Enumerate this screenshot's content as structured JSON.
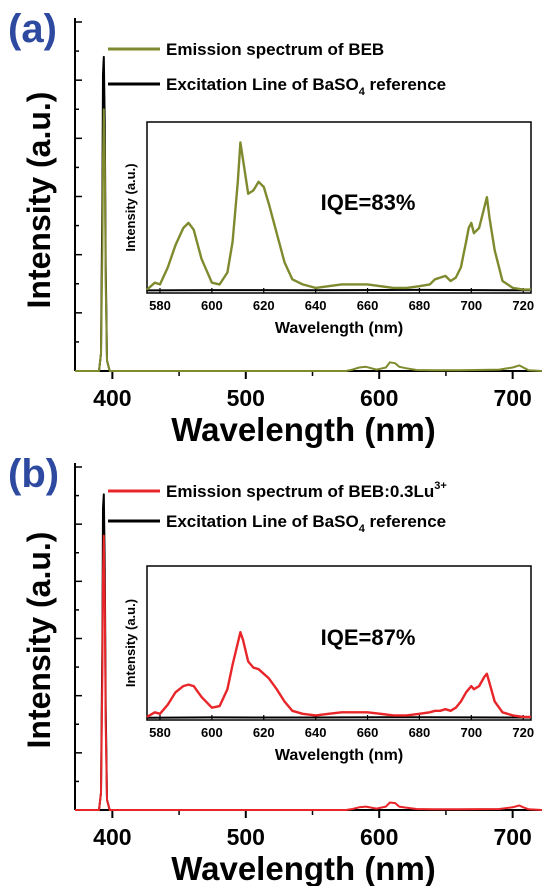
{
  "chart_data": [
    {
      "type": "line",
      "panel_label": "(a)",
      "xlabel": "Wavelength (nm)",
      "ylabel": "Intensity (a.u.)",
      "xlim": [
        372,
        722
      ],
      "ylim": [
        0,
        1.0
      ],
      "xticks": [
        400,
        500,
        600,
        700
      ],
      "xtick_labels": [
        "400",
        "500",
        "600",
        "700"
      ],
      "legend_position": "top-right",
      "legend_top_right": true,
      "colors": {
        "emission": "#7f8a2e",
        "reference": "#000000",
        "panel_label": "#2e4aa0"
      },
      "series": [
        {
          "name": "Emission spectrum of BEB",
          "key": "emission",
          "x": [
            372,
            390,
            391.5,
            392.5,
            393,
            393.6,
            394.3,
            395,
            396,
            398,
            400,
            500,
            575,
            580,
            585,
            590,
            598,
            605,
            608,
            612,
            615,
            620,
            628,
            640,
            660,
            690,
            700,
            705,
            708,
            712,
            722
          ],
          "y": [
            0,
            0,
            0.05,
            0.35,
            0.6,
            0.75,
            0.6,
            0.25,
            0.03,
            0,
            0,
            0,
            0,
            0.004,
            0.01,
            0.012,
            0.004,
            0.01,
            0.025,
            0.022,
            0.012,
            0.008,
            0.003,
            0.002,
            0.002,
            0.004,
            0.01,
            0.016,
            0.01,
            0.002,
            0
          ]
        },
        {
          "name": "Excitation Line of BaSO",
          "name_subscript": "4",
          "name_suffix": " reference",
          "key": "reference",
          "x": [
            372,
            390,
            391.5,
            392.5,
            393,
            393.6,
            394.3,
            395,
            396,
            398,
            722
          ],
          "y": [
            0,
            0,
            0.05,
            0.5,
            0.85,
            0.9,
            0.7,
            0.3,
            0.03,
            0,
            0
          ]
        }
      ],
      "inset": {
        "xlabel": "Wavelength (nm)",
        "ylabel": "Intensity (a.u.)",
        "xlim": [
          575,
          723
        ],
        "ylim": [
          0,
          1.0
        ],
        "xticks": [
          580,
          600,
          620,
          640,
          660,
          680,
          700,
          720
        ],
        "xtick_labels": [
          "580",
          "600",
          "620",
          "640",
          "660",
          "680",
          "700",
          "720"
        ],
        "annotation": "IQE=83%",
        "series": [
          {
            "key": "emission",
            "x": [
              575,
              578,
              580,
              583,
              586,
              589,
              591,
              593,
              596,
              600,
              603,
              606,
              608,
              610,
              611,
              612,
              614,
              616,
              618,
              620,
              622,
              625,
              628,
              631,
              635,
              640,
              645,
              650,
              655,
              660,
              665,
              670,
              675,
              680,
              684,
              686,
              688,
              690,
              692,
              694,
              696,
              698,
              699,
              700,
              701,
              703,
              705,
              706,
              707,
              709,
              712,
              716,
              720,
              723
            ],
            "y": [
              0.02,
              0.06,
              0.05,
              0.15,
              0.28,
              0.38,
              0.41,
              0.37,
              0.2,
              0.06,
              0.05,
              0.12,
              0.3,
              0.65,
              0.88,
              0.78,
              0.58,
              0.6,
              0.65,
              0.62,
              0.52,
              0.35,
              0.18,
              0.08,
              0.05,
              0.03,
              0.04,
              0.05,
              0.05,
              0.05,
              0.04,
              0.03,
              0.03,
              0.04,
              0.05,
              0.08,
              0.09,
              0.1,
              0.07,
              0.09,
              0.15,
              0.3,
              0.38,
              0.41,
              0.35,
              0.38,
              0.5,
              0.56,
              0.44,
              0.25,
              0.07,
              0.03,
              0.02,
              0.02
            ]
          },
          {
            "key": "reference",
            "x": [
              575,
              600,
              640,
              680,
              723
            ],
            "y": [
              0.015,
              0.017,
              0.016,
              0.018,
              0.016
            ]
          }
        ]
      }
    },
    {
      "type": "line",
      "panel_label": "(b)",
      "xlabel": "Wavelength (nm)",
      "ylabel": "Intensity (a.u.)",
      "xlim": [
        372,
        722
      ],
      "ylim": [
        0,
        1.0
      ],
      "xticks": [
        400,
        500,
        600,
        700
      ],
      "xtick_labels": [
        "400",
        "500",
        "600",
        "700"
      ],
      "legend_position": "top-right",
      "legend_top_right": true,
      "colors": {
        "emission": "#e8262a",
        "reference": "#000000",
        "panel_label": "#2e4aa0"
      },
      "series": [
        {
          "name": "Emission spectrum of BEB:0.3Lu",
          "name_superscript": "3+",
          "key": "emission",
          "x": [
            372,
            390,
            391.5,
            392.5,
            393,
            393.6,
            394.3,
            395,
            396,
            398,
            400,
            500,
            575,
            580,
            585,
            590,
            598,
            605,
            608,
            612,
            615,
            620,
            628,
            640,
            660,
            690,
            700,
            705,
            708,
            712,
            722
          ],
          "y": [
            0,
            0,
            0.05,
            0.4,
            0.68,
            0.8,
            0.6,
            0.25,
            0.03,
            0,
            0,
            0,
            0,
            0.003,
            0.008,
            0.01,
            0.004,
            0.01,
            0.022,
            0.02,
            0.01,
            0.007,
            0.003,
            0.002,
            0.002,
            0.003,
            0.008,
            0.013,
            0.008,
            0.002,
            0
          ]
        },
        {
          "name": "Excitation Line of BaSO",
          "name_subscript": "4",
          "name_suffix": " reference",
          "key": "reference",
          "x": [
            372,
            390,
            391.5,
            392.5,
            393,
            393.6,
            394.3,
            395,
            396,
            398,
            722
          ],
          "y": [
            0,
            0,
            0.05,
            0.5,
            0.88,
            0.92,
            0.7,
            0.3,
            0.03,
            0,
            0
          ]
        }
      ],
      "inset": {
        "xlabel": "Wavelength (nm)",
        "ylabel": "Intensity (a.u.)",
        "xlim": [
          575,
          723
        ],
        "ylim": [
          0,
          1.0
        ],
        "xticks": [
          580,
          600,
          620,
          640,
          660,
          680,
          700,
          720
        ],
        "xtick_labels": [
          "580",
          "600",
          "620",
          "640",
          "660",
          "680",
          "700",
          "720"
        ],
        "annotation": "IQE=87%",
        "series": [
          {
            "key": "emission",
            "x": [
              575,
              578,
              580,
              583,
              586,
              589,
              591,
              593,
              596,
              600,
              603,
              606,
              608,
              610,
              611,
              612,
              614,
              616,
              618,
              620,
              622,
              625,
              628,
              631,
              635,
              640,
              645,
              650,
              655,
              660,
              665,
              670,
              675,
              680,
              684,
              686,
              688,
              690,
              692,
              694,
              696,
              698,
              699,
              700,
              701,
              703,
              705,
              706,
              707,
              709,
              712,
              716,
              720,
              723
            ],
            "y": [
              0.02,
              0.05,
              0.04,
              0.1,
              0.18,
              0.22,
              0.23,
              0.22,
              0.15,
              0.08,
              0.09,
              0.2,
              0.36,
              0.5,
              0.57,
              0.52,
              0.38,
              0.34,
              0.33,
              0.3,
              0.27,
              0.2,
              0.12,
              0.06,
              0.04,
              0.03,
              0.04,
              0.05,
              0.05,
              0.05,
              0.04,
              0.03,
              0.03,
              0.04,
              0.05,
              0.06,
              0.06,
              0.07,
              0.06,
              0.08,
              0.12,
              0.18,
              0.2,
              0.22,
              0.2,
              0.22,
              0.28,
              0.3,
              0.24,
              0.12,
              0.05,
              0.03,
              0.02,
              0.02
            ]
          },
          {
            "key": "reference",
            "x": [
              575,
              600,
              640,
              680,
              723
            ],
            "y": [
              0.015,
              0.017,
              0.016,
              0.018,
              0.016
            ]
          }
        ]
      }
    }
  ]
}
